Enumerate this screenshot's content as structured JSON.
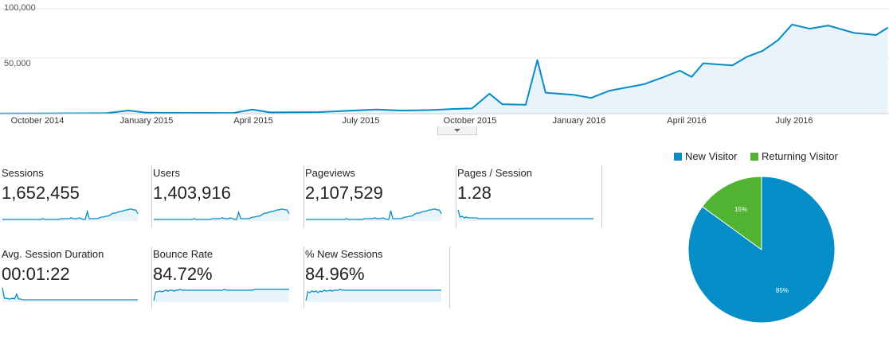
{
  "main_chart": {
    "y_labels": [
      "100,000",
      "50,000"
    ],
    "x_labels": [
      "October 2014",
      "January 2015",
      "April 2015",
      "July 2015",
      "October 2015",
      "January 2016",
      "April 2016",
      "July 2016"
    ],
    "line_color": "#058dc7",
    "fill_color": "#e8f4fa",
    "chart_data": {
      "type": "area",
      "ylim": [
        0,
        100000
      ],
      "xrange": [
        "2014-09",
        "2016-10"
      ],
      "points": [
        [
          "2014-09-01",
          200
        ],
        [
          "2014-10-15",
          300
        ],
        [
          "2014-12-01",
          500
        ],
        [
          "2014-12-20",
          3000
        ],
        [
          "2015-01-05",
          900
        ],
        [
          "2015-02-15",
          800
        ],
        [
          "2015-03-20",
          700
        ],
        [
          "2015-04-05",
          4000
        ],
        [
          "2015-04-20",
          1200
        ],
        [
          "2015-06-01",
          1500
        ],
        [
          "2015-07-01",
          3000
        ],
        [
          "2015-07-20",
          4000
        ],
        [
          "2015-08-10",
          3000
        ],
        [
          "2015-09-05",
          3500
        ],
        [
          "2015-09-25",
          4500
        ],
        [
          "2015-10-10",
          5000
        ],
        [
          "2015-10-25",
          19000
        ],
        [
          "2015-11-05",
          9000
        ],
        [
          "2015-11-25",
          8500
        ],
        [
          "2015-12-05",
          51000
        ],
        [
          "2015-12-12",
          20000
        ],
        [
          "2016-01-05",
          18000
        ],
        [
          "2016-01-20",
          15000
        ],
        [
          "2016-02-05",
          22000
        ],
        [
          "2016-03-05",
          28000
        ],
        [
          "2016-03-20",
          34000
        ],
        [
          "2016-04-05",
          41000
        ],
        [
          "2016-04-15",
          35000
        ],
        [
          "2016-04-25",
          48000
        ],
        [
          "2016-05-20",
          46000
        ],
        [
          "2016-06-01",
          54000
        ],
        [
          "2016-06-15",
          60000
        ],
        [
          "2016-06-28",
          70000
        ],
        [
          "2016-07-10",
          85000
        ],
        [
          "2016-07-25",
          81000
        ],
        [
          "2016-08-10",
          84000
        ],
        [
          "2016-09-01",
          77000
        ],
        [
          "2016-09-20",
          75000
        ],
        [
          "2016-09-30",
          82000
        ]
      ]
    }
  },
  "metrics": [
    {
      "label": "Sessions",
      "value": "1,652,455",
      "spark": [
        2,
        2,
        2,
        2,
        2,
        2,
        2,
        2,
        2,
        2,
        2,
        2,
        2,
        2,
        2,
        2,
        2,
        2,
        2,
        2,
        3,
        2,
        2,
        2,
        2,
        2,
        2,
        2,
        2,
        3,
        3,
        3,
        3,
        3,
        4,
        3,
        3,
        3,
        4,
        3,
        2,
        2,
        12,
        3,
        3,
        3,
        3,
        3,
        4,
        5,
        5,
        6,
        6,
        7,
        9,
        10,
        10,
        11,
        12,
        12,
        13,
        14,
        14,
        15,
        15,
        14,
        14,
        9
      ]
    },
    {
      "label": "Users",
      "value": "1,403,916",
      "spark": [
        2,
        2,
        2,
        2,
        2,
        2,
        2,
        2,
        2,
        2,
        2,
        2,
        2,
        2,
        2,
        2,
        2,
        2,
        2,
        2,
        3,
        2,
        2,
        2,
        2,
        2,
        2,
        2,
        2,
        3,
        3,
        3,
        3,
        3,
        4,
        3,
        3,
        3,
        4,
        3,
        2,
        2,
        11,
        3,
        3,
        3,
        3,
        3,
        4,
        5,
        5,
        6,
        6,
        7,
        9,
        10,
        10,
        11,
        12,
        12,
        13,
        14,
        14,
        15,
        15,
        14,
        14,
        9
      ]
    },
    {
      "label": "Pageviews",
      "value": "2,107,529",
      "spark": [
        2,
        2,
        2,
        2,
        2,
        2,
        2,
        2,
        2,
        2,
        2,
        2,
        2,
        2,
        2,
        2,
        2,
        2,
        2,
        2,
        3,
        2,
        2,
        2,
        2,
        2,
        2,
        2,
        2,
        3,
        3,
        3,
        3,
        3,
        4,
        3,
        3,
        3,
        4,
        3,
        2,
        2,
        13,
        3,
        3,
        3,
        3,
        3,
        4,
        5,
        5,
        6,
        6,
        7,
        9,
        10,
        10,
        11,
        12,
        12,
        13,
        14,
        14,
        15,
        15,
        14,
        14,
        9
      ]
    },
    {
      "label": "Pages / Session",
      "value": "1.28",
      "spark": [
        14,
        5,
        6,
        4,
        5,
        4,
        4,
        4,
        4,
        4,
        3,
        3,
        3,
        3,
        3,
        3,
        3,
        3,
        3,
        3,
        3,
        3,
        3,
        3,
        3,
        3,
        3,
        3,
        3,
        3,
        3,
        3,
        3,
        3,
        3,
        3,
        3,
        3,
        3,
        3,
        3,
        3,
        3,
        3,
        3,
        3,
        3,
        3,
        3,
        3,
        3,
        3,
        3,
        3,
        3,
        3,
        3,
        3,
        3,
        3,
        3,
        3,
        3,
        3,
        3,
        3,
        3,
        3
      ]
    },
    {
      "label": "Avg. Session Duration",
      "value": "00:01:22",
      "spark": [
        18,
        5,
        5,
        4,
        4,
        5,
        4,
        10,
        4,
        4,
        3,
        3,
        3,
        3,
        3,
        3,
        3,
        3,
        3,
        3,
        3,
        3,
        3,
        3,
        3,
        3,
        3,
        3,
        3,
        3,
        3,
        3,
        3,
        3,
        3,
        3,
        3,
        3,
        3,
        3,
        3,
        3,
        3,
        3,
        3,
        3,
        3,
        3,
        3,
        3,
        3,
        3,
        3,
        3,
        3,
        3,
        3,
        3,
        3,
        3,
        3,
        3,
        3,
        3,
        3,
        3,
        3,
        3
      ]
    },
    {
      "label": "Bounce Rate",
      "value": "84.72%",
      "spark": [
        2,
        13,
        13,
        14,
        13,
        14,
        15,
        14,
        15,
        15,
        14,
        15,
        15,
        16,
        15,
        15,
        15,
        15,
        15,
        15,
        15,
        15,
        15,
        15,
        15,
        15,
        15,
        15,
        15,
        15,
        15,
        15,
        15,
        15,
        15,
        16,
        15,
        15,
        15,
        15,
        15,
        15,
        15,
        15,
        15,
        15,
        15,
        15,
        15,
        15,
        16,
        16,
        16,
        16,
        16,
        16,
        16,
        16,
        16,
        16,
        16,
        16,
        16,
        16,
        16,
        16,
        16,
        16
      ]
    },
    {
      "label": "% New Sessions",
      "value": "84.96%",
      "spark": [
        2,
        13,
        12,
        14,
        13,
        14,
        12,
        14,
        13,
        15,
        14,
        14,
        15,
        14,
        15,
        15,
        15,
        16,
        15,
        15,
        15,
        15,
        15,
        15,
        15,
        15,
        15,
        15,
        15,
        15,
        15,
        15,
        15,
        15,
        15,
        15,
        15,
        15,
        15,
        15,
        15,
        15,
        15,
        15,
        15,
        15,
        15,
        15,
        15,
        15,
        15,
        15,
        15,
        15,
        15,
        15,
        15,
        15,
        15,
        15,
        15,
        15,
        15,
        15,
        15,
        15,
        15,
        15
      ]
    }
  ],
  "pie": {
    "chart_data": {
      "type": "pie",
      "slices": [
        {
          "name": "New Visitor",
          "value": 85,
          "label": "85%",
          "color": "#058dc7"
        },
        {
          "name": "Returning Visitor",
          "value": 15,
          "label": "15%",
          "color": "#50b432"
        }
      ]
    }
  },
  "legend": {
    "new_label": "New Visitor",
    "returning_label": "Returning Visitor"
  }
}
